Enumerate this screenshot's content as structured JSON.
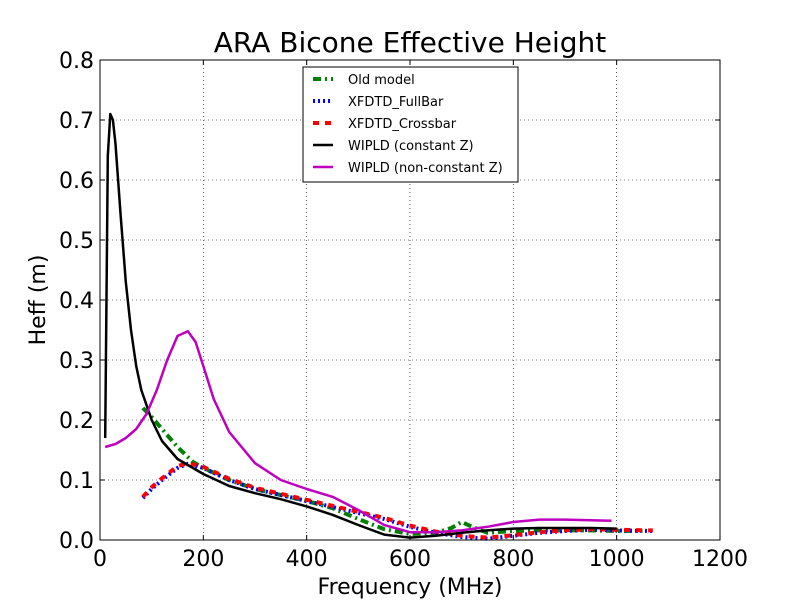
{
  "chart_data": {
    "type": "line",
    "title": "ARA Bicone Effective Height",
    "xlabel": "Frequency (MHz)",
    "ylabel": "Heff (m)",
    "xlim": [
      0,
      1200
    ],
    "ylim": [
      0,
      0.8
    ],
    "xticks": [
      "0",
      "200",
      "400",
      "600",
      "800",
      "1000",
      "1200"
    ],
    "yticks": [
      "0.0",
      "0.1",
      "0.2",
      "0.3",
      "0.4",
      "0.5",
      "0.6",
      "0.7",
      "0.8"
    ],
    "grid": true,
    "legend_position": "top-center",
    "series": [
      {
        "name": "Old model",
        "color": "#007f00",
        "style": "dashdot",
        "x": [
          83,
          100,
          120,
          150,
          180,
          200,
          250,
          300,
          350,
          400,
          450,
          500,
          550,
          600,
          650,
          680,
          700,
          720,
          750,
          800,
          850,
          900,
          950,
          1000,
          1050
        ],
        "y": [
          0.22,
          0.205,
          0.185,
          0.155,
          0.13,
          0.12,
          0.1,
          0.085,
          0.075,
          0.065,
          0.053,
          0.035,
          0.018,
          0.01,
          0.012,
          0.02,
          0.03,
          0.022,
          0.012,
          0.015,
          0.016,
          0.016,
          0.016,
          0.015,
          0.015
        ]
      },
      {
        "name": "XFDTD_FullBar",
        "color": "#0000ff",
        "style": "dotted",
        "x": [
          83,
          100,
          120,
          150,
          170,
          200,
          250,
          300,
          350,
          400,
          450,
          500,
          550,
          600,
          650,
          700,
          750,
          800,
          850,
          900,
          950,
          1000,
          1070
        ],
        "y": [
          0.07,
          0.085,
          0.1,
          0.12,
          0.127,
          0.12,
          0.1,
          0.085,
          0.075,
          0.065,
          0.055,
          0.045,
          0.035,
          0.022,
          0.012,
          0.005,
          0.002,
          0.007,
          0.012,
          0.015,
          0.017,
          0.016,
          0.015
        ]
      },
      {
        "name": "XFDTD_Crossbar",
        "color": "#ff0000",
        "style": "dashed",
        "x": [
          83,
          100,
          120,
          150,
          170,
          200,
          250,
          300,
          350,
          400,
          450,
          500,
          550,
          600,
          650,
          700,
          750,
          800,
          850,
          900,
          950,
          1000,
          1070
        ],
        "y": [
          0.072,
          0.088,
          0.103,
          0.123,
          0.128,
          0.122,
          0.102,
          0.087,
          0.077,
          0.067,
          0.057,
          0.047,
          0.037,
          0.024,
          0.014,
          0.007,
          0.004,
          0.008,
          0.013,
          0.016,
          0.018,
          0.017,
          0.016
        ]
      },
      {
        "name": "WIPLD (constant Z)",
        "color": "#000000",
        "style": "solid",
        "x": [
          10,
          15,
          20,
          25,
          30,
          40,
          50,
          60,
          70,
          80,
          100,
          120,
          150,
          200,
          250,
          300,
          350,
          400,
          450,
          500,
          550,
          600,
          650,
          700,
          750,
          800,
          850,
          900,
          950,
          1000
        ],
        "y": [
          0.17,
          0.64,
          0.71,
          0.7,
          0.66,
          0.54,
          0.43,
          0.35,
          0.29,
          0.25,
          0.2,
          0.165,
          0.135,
          0.11,
          0.09,
          0.078,
          0.068,
          0.056,
          0.042,
          0.025,
          0.009,
          0.004,
          0.007,
          0.012,
          0.016,
          0.019,
          0.02,
          0.02,
          0.02,
          0.019
        ]
      },
      {
        "name": "WIPLD (non-constant Z)",
        "color": "#bf00bf",
        "style": "solid",
        "x": [
          10,
          30,
          50,
          70,
          90,
          110,
          130,
          150,
          170,
          185,
          200,
          220,
          250,
          300,
          350,
          400,
          450,
          500,
          550,
          600,
          650,
          700,
          750,
          800,
          850,
          900,
          950,
          990
        ],
        "y": [
          0.155,
          0.16,
          0.17,
          0.185,
          0.21,
          0.25,
          0.3,
          0.34,
          0.348,
          0.33,
          0.29,
          0.235,
          0.18,
          0.128,
          0.1,
          0.085,
          0.072,
          0.05,
          0.025,
          0.013,
          0.013,
          0.016,
          0.022,
          0.03,
          0.034,
          0.034,
          0.033,
          0.032
        ]
      }
    ]
  }
}
